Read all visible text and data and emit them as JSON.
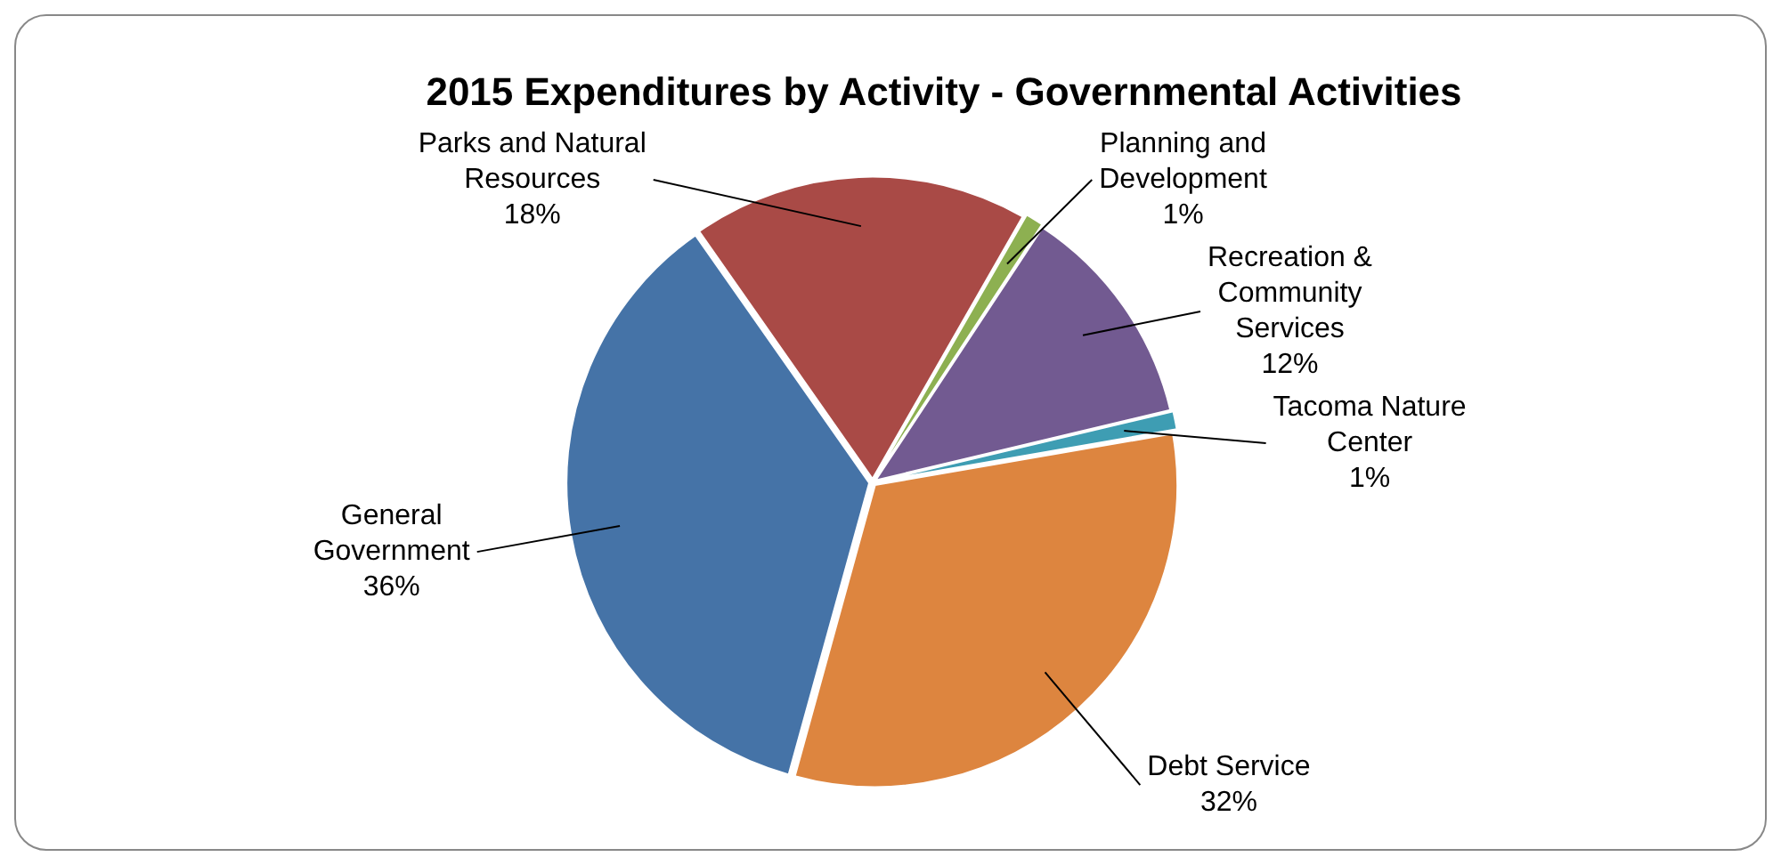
{
  "chart_data": {
    "type": "pie",
    "title": "2015 Expenditures  by Activity - Governmental Activities",
    "categories": [
      "Parks and Natural Resources",
      "Planning and Development",
      "Recreation & Community Services",
      "Tacoma Nature Center",
      "Debt Service",
      "General Government"
    ],
    "values": [
      18,
      1,
      12,
      1,
      32,
      36
    ],
    "value_labels": [
      "18%",
      "1%",
      "12%",
      "1%",
      "32%",
      "36%"
    ],
    "colors": [
      "#a94a46",
      "#8db051",
      "#725a91",
      "#3e9db3",
      "#dd853f",
      "#4573a7"
    ],
    "legend": false
  }
}
